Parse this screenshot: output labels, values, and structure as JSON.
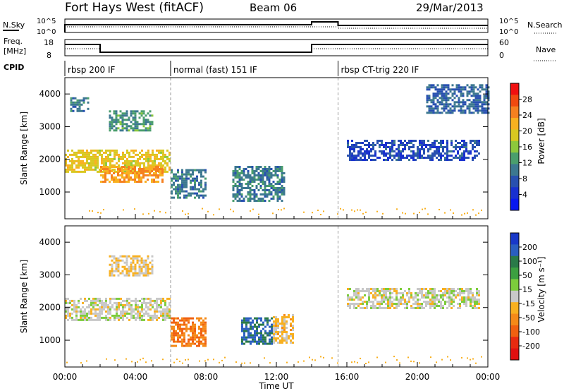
{
  "header": {
    "station": "Fort Hays West (fitACF)",
    "beam": "Beam 06",
    "date": "29/Mar/2013"
  },
  "top_panels": {
    "nsky_label": "N.Sky",
    "noise_left_ticks": [
      "10^5",
      "10^0"
    ],
    "noise_right_ticks": [
      "10^5",
      "10^0"
    ],
    "nsearch_label": "N.Search",
    "freq_label_1": "Freq.",
    "freq_label_2": "[MHz]",
    "freq_ticks": [
      "18",
      "8"
    ],
    "nave_ticks": [
      "60",
      "0"
    ],
    "nave_label": "Nave",
    "cpid_label": "CPID",
    "modes": [
      {
        "label": "rbsp 200 IF",
        "start": 0
      },
      {
        "label": "normal (fast) 151 IF",
        "start": 6
      },
      {
        "label": "rbsp CT-trig 220 IF",
        "start": 15.5
      }
    ]
  },
  "power_colorbar": {
    "label": "Power [dB]",
    "ticks": [
      "28",
      "24",
      "20",
      "16",
      "12",
      "8",
      "4"
    ],
    "colors": [
      "#f01010",
      "#f04a10",
      "#f58020",
      "#f8b020",
      "#d8c820",
      "#8cc83c",
      "#4a9e6c",
      "#3c7890",
      "#2850b0",
      "#1830d0",
      "#0818f0"
    ]
  },
  "velocity_colorbar": {
    "label": "Velocity [m s⁻¹]",
    "ticks": [
      "200",
      "100",
      "50",
      "15",
      "-15",
      "-50",
      "-100",
      "-200"
    ],
    "colors": [
      "#1838c8",
      "#2a5ec0",
      "#2a7a48",
      "#3ca040",
      "#7ccc3c",
      "#c8c8c8",
      "#f8b020",
      "#f58a18",
      "#f06010",
      "#e82a10",
      "#e01010"
    ]
  },
  "x_axis": {
    "label": "Time UT",
    "ticks": [
      "00:00",
      "04:00",
      "08:00",
      "12:00",
      "16:00",
      "20:00",
      "00:00"
    ]
  },
  "chart_data": [
    {
      "type": "heatmap",
      "title": "Power",
      "ylabel": "Slant Range [km]",
      "yticks": [
        "4000",
        "3000",
        "2000",
        "1000"
      ],
      "xlabel": "Time UT",
      "xlim": [
        0,
        24
      ],
      "ylim": [
        180,
        4500
      ],
      "zlabel": "Power [dB]",
      "zlim": [
        0,
        32
      ],
      "regions": [
        {
          "t": [
            0.0,
            6.0
          ],
          "r": [
            1600,
            2300
          ],
          "value": 20
        },
        {
          "t": [
            2.0,
            5.5
          ],
          "r": [
            1300,
            1800
          ],
          "value": 24
        },
        {
          "t": [
            0.3,
            1.3
          ],
          "r": [
            3500,
            3900
          ],
          "value": 10
        },
        {
          "t": [
            2.5,
            5.0
          ],
          "r": [
            2900,
            3500
          ],
          "value": 12
        },
        {
          "t": [
            6.0,
            8.0
          ],
          "r": [
            800,
            1700
          ],
          "value": 10
        },
        {
          "t": [
            9.5,
            12.5
          ],
          "r": [
            750,
            1800
          ],
          "value": 10
        },
        {
          "t": [
            16.0,
            23.5
          ],
          "r": [
            2000,
            2600
          ],
          "value": 6
        },
        {
          "t": [
            20.5,
            24.0
          ],
          "r": [
            3400,
            4300
          ],
          "value": 8
        }
      ]
    },
    {
      "type": "heatmap",
      "title": "Velocity",
      "ylabel": "Slant Range [km]",
      "yticks": [
        "4000",
        "3000",
        "2000",
        "1000"
      ],
      "xlabel": "Time UT",
      "xlim": [
        0,
        24
      ],
      "ylim": [
        180,
        4500
      ],
      "zlabel": "Velocity [m s-1]",
      "zlim": [
        -250,
        250
      ],
      "regions": [
        {
          "t": [
            0.0,
            6.0
          ],
          "r": [
            1600,
            2300
          ],
          "value": 0
        },
        {
          "t": [
            6.0,
            8.0
          ],
          "r": [
            800,
            1700
          ],
          "value": -120
        },
        {
          "t": [
            10.0,
            11.8
          ],
          "r": [
            900,
            1700
          ],
          "value": 180
        },
        {
          "t": [
            11.8,
            13.0
          ],
          "r": [
            900,
            1800
          ],
          "value": -40
        },
        {
          "t": [
            2.5,
            5.0
          ],
          "r": [
            3000,
            3600
          ],
          "value": -30
        },
        {
          "t": [
            16.0,
            23.5
          ],
          "r": [
            2000,
            2600
          ],
          "value": 0
        }
      ]
    }
  ]
}
